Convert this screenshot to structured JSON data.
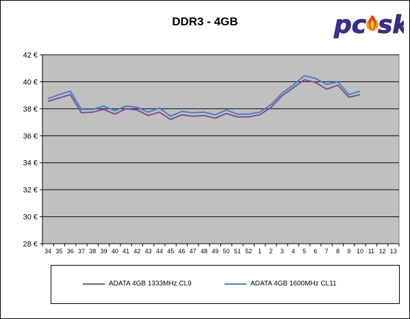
{
  "chart_data": {
    "type": "line",
    "title": "DDR3 - 4GB",
    "categories": [
      "34",
      "35",
      "36",
      "37",
      "38",
      "39",
      "40",
      "41",
      "42",
      "43",
      "44",
      "45",
      "46",
      "47",
      "48",
      "49",
      "50",
      "51",
      "52",
      "1",
      "2",
      "3",
      "4",
      "5",
      "6",
      "7",
      "8",
      "9",
      "10",
      "11",
      "12",
      "13"
    ],
    "y_tick_labels": [
      "28 €",
      "30 €",
      "32 €",
      "34 €",
      "36 €",
      "38 €",
      "40 €",
      "42 €"
    ],
    "ylim": [
      28,
      42
    ],
    "y_tick_step": 2,
    "grid": true,
    "legend_position": "bottom",
    "plot_background": "#c0c0c0",
    "series": [
      {
        "name": "ADATA 4GB 1333MHz CL9",
        "color": "#7a4f9a",
        "values": [
          38.55,
          38.8,
          39.05,
          37.7,
          37.75,
          37.95,
          37.6,
          38.0,
          37.9,
          37.5,
          37.75,
          37.2,
          37.55,
          37.45,
          37.5,
          37.3,
          37.65,
          37.4,
          37.4,
          37.55,
          38.1,
          38.95,
          39.55,
          40.15,
          39.95,
          39.45,
          39.75,
          38.85,
          39.05,
          null,
          null,
          null
        ]
      },
      {
        "name": "ADATA 4GB 1600MHz CL11",
        "color": "#4a7ebb",
        "values": [
          38.75,
          39.05,
          39.3,
          37.95,
          37.95,
          38.2,
          37.85,
          38.2,
          38.1,
          37.75,
          38.05,
          37.45,
          37.8,
          37.7,
          37.75,
          37.55,
          37.9,
          37.6,
          37.6,
          37.75,
          38.3,
          39.15,
          39.75,
          40.45,
          40.25,
          39.8,
          40.0,
          39.05,
          39.3,
          null,
          null,
          null
        ]
      }
    ]
  },
  "logo": {
    "text": "pcsk"
  },
  "colors": {
    "frame": "#000000",
    "plot_area": "#c0c0c0",
    "gridline": "#000000"
  }
}
